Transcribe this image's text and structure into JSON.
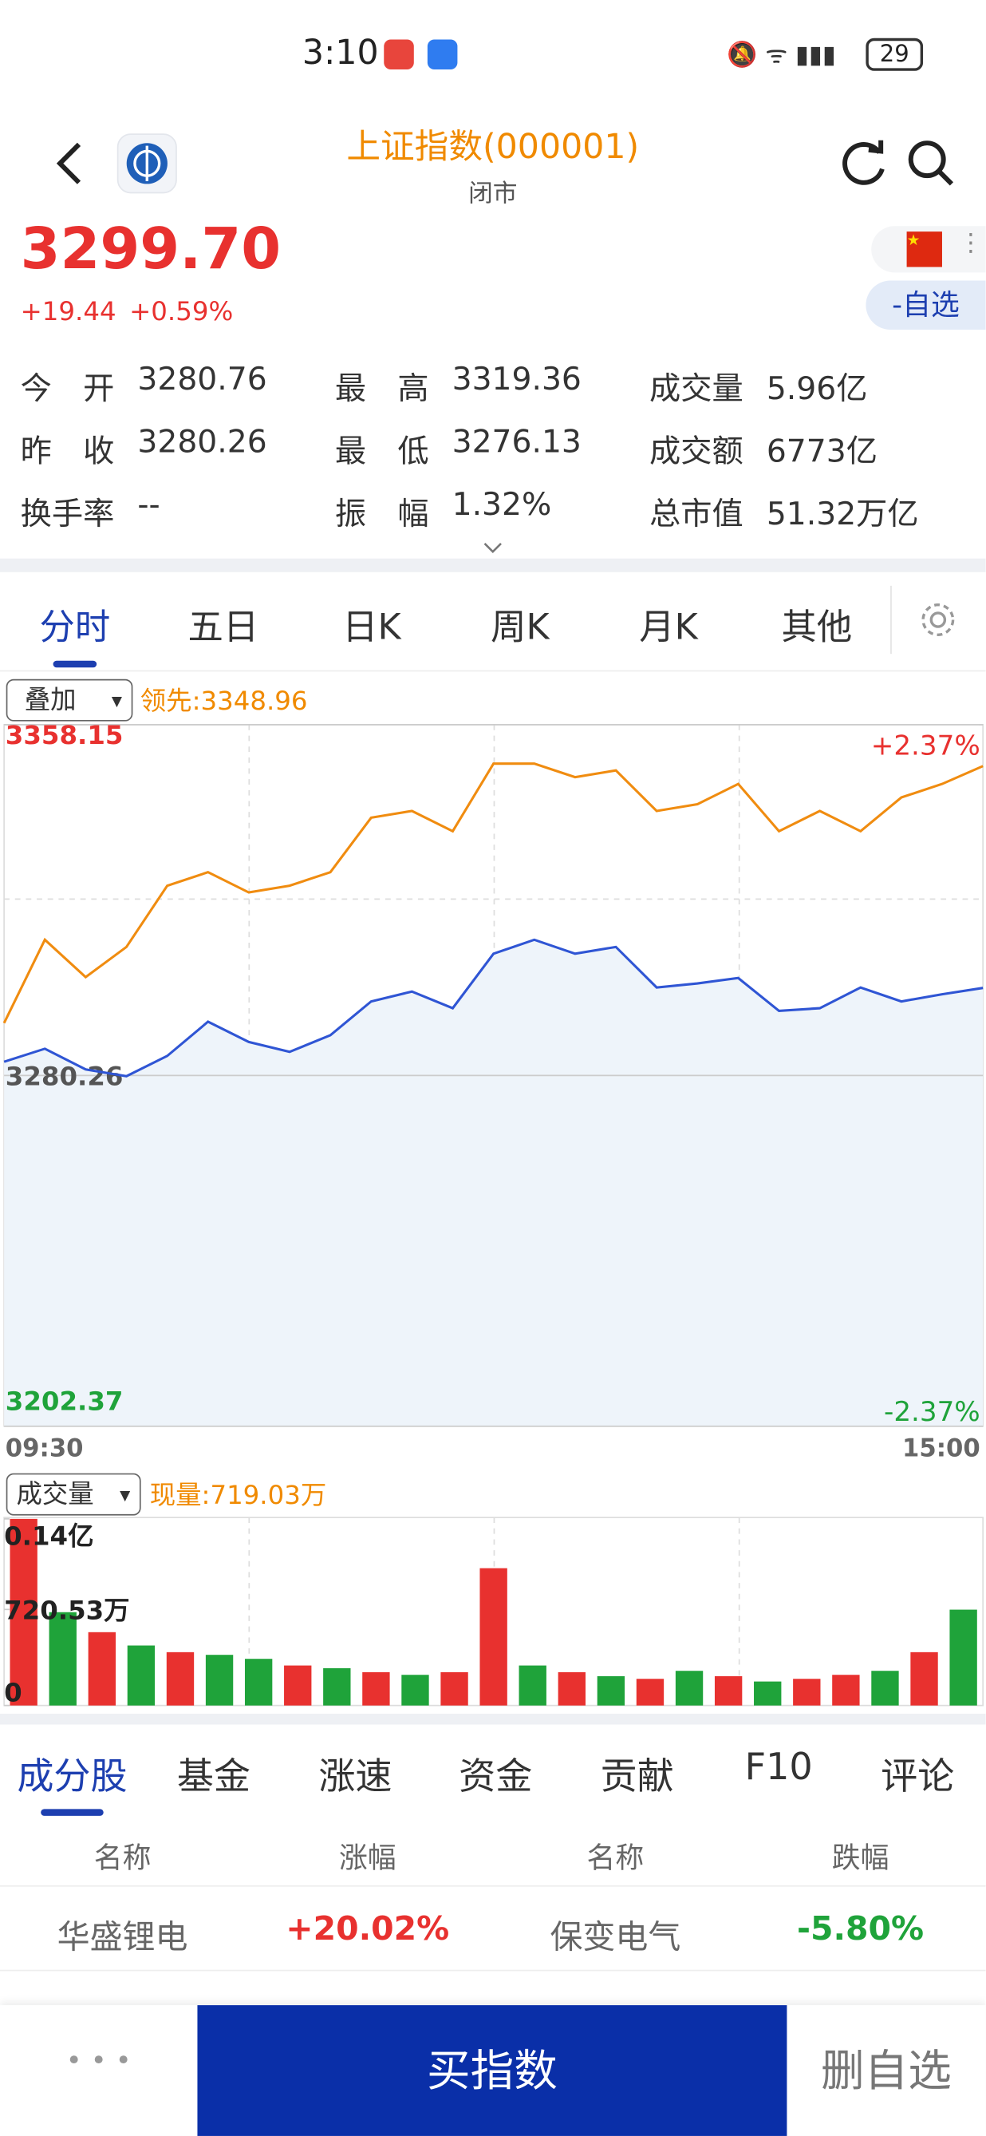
{
  "status_bar": {
    "time": "3:10",
    "battery": "29"
  },
  "header": {
    "title": "上证指数(000001)",
    "status": "闭市"
  },
  "quote": {
    "price": "3299.70",
    "change": "+19.44",
    "change_pct": "+0.59%",
    "watch_button": "-自选"
  },
  "stats": [
    [
      {
        "label": "今　开",
        "value": "3280.76"
      },
      {
        "label": "最　高",
        "value": "3319.36"
      },
      {
        "label": "成交量",
        "value": "5.96亿"
      }
    ],
    [
      {
        "label": "昨　收",
        "value": "3280.26"
      },
      {
        "label": "最　低",
        "value": "3276.13"
      },
      {
        "label": "成交额",
        "value": "6773亿"
      }
    ],
    [
      {
        "label": "换手率",
        "value": "--"
      },
      {
        "label": "振　幅",
        "value": "1.32%"
      },
      {
        "label": "总市值",
        "value": "51.32万亿"
      }
    ]
  ],
  "period_tabs": [
    "分时",
    "五日",
    "日K",
    "周K",
    "月K",
    "其他"
  ],
  "intraday": {
    "overlay_select": "叠加",
    "leader_label": "领先:3348.96",
    "ylim": [
      3202.37,
      3358.15
    ],
    "yticks": [
      3202.37,
      3280.26,
      3358.15
    ],
    "y2lim": [
      -2.37,
      2.37
    ],
    "y2ticks": [
      {
        "value": -2.37,
        "label": "-2.37%"
      },
      {
        "value": 2.37,
        "label": "+2.37%"
      }
    ],
    "xticks": [
      "09:30",
      "15:00"
    ],
    "series": [
      {
        "color": "#f08c10",
        "values": [
          3291.9,
          3310.4,
          3302.1,
          3308.8,
          3322.4,
          3325.4,
          3320.9,
          3322.4,
          3325.4,
          3337.5,
          3339.0,
          3334.5,
          3349.5,
          3349.5,
          3346.5,
          3348.0,
          3339.0,
          3340.5,
          3345.0,
          3334.5,
          3339.0,
          3334.5,
          3342.0,
          3345.0,
          3348.96
        ]
      },
      {
        "color": "#2f55d4",
        "values": [
          3283.3,
          3286.2,
          3281.6,
          3280.1,
          3284.6,
          3292.2,
          3287.7,
          3285.5,
          3289.2,
          3296.7,
          3298.9,
          3295.2,
          3307.3,
          3310.4,
          3307.3,
          3308.8,
          3299.8,
          3300.7,
          3301.9,
          3294.6,
          3295.2,
          3299.8,
          3296.7,
          3298.3,
          3299.7
        ]
      }
    ]
  },
  "volume": {
    "select": "成交量",
    "current_label": "现量:719.03万",
    "ylim": [
      0,
      1400
    ],
    "yticks": [
      0,
      {
        "value": 720.53,
        "label": "720.53万"
      },
      {
        "value": 1400,
        "label": "0.14亿"
      }
    ],
    "values": [
      1400,
      700,
      550,
      450,
      400,
      380,
      350,
      300,
      280,
      250,
      230,
      250,
      1030,
      300,
      250,
      220,
      200,
      260,
      220,
      180,
      200,
      230,
      260,
      400,
      719.03
    ],
    "colors": [
      "#e8312f",
      "#1fa33a",
      "#e8312f",
      "#1fa33a",
      "#e8312f",
      "#1fa33a",
      "#1fa33a",
      "#e8312f",
      "#1fa33a",
      "#e8312f",
      "#1fa33a",
      "#e8312f",
      "#e8312f",
      "#1fa33a",
      "#e8312f",
      "#1fa33a",
      "#e8312f",
      "#1fa33a",
      "#e8312f",
      "#1fa33a",
      "#e8312f",
      "#e8312f",
      "#1fa33a",
      "#e8312f",
      "#1fa33a"
    ]
  },
  "list_tabs": [
    "成分股",
    "基金",
    "涨速",
    "资金",
    "贡献",
    "F10",
    "评论"
  ],
  "table": {
    "header": [
      "名称",
      "涨幅",
      "名称",
      "跌幅"
    ],
    "rows": [
      [
        "华盛锂电",
        "+20.02%",
        "保变电气",
        "-5.80%"
      ]
    ]
  },
  "footer": {
    "more": "• • •",
    "buy": "买指数",
    "remove": "删自选"
  }
}
